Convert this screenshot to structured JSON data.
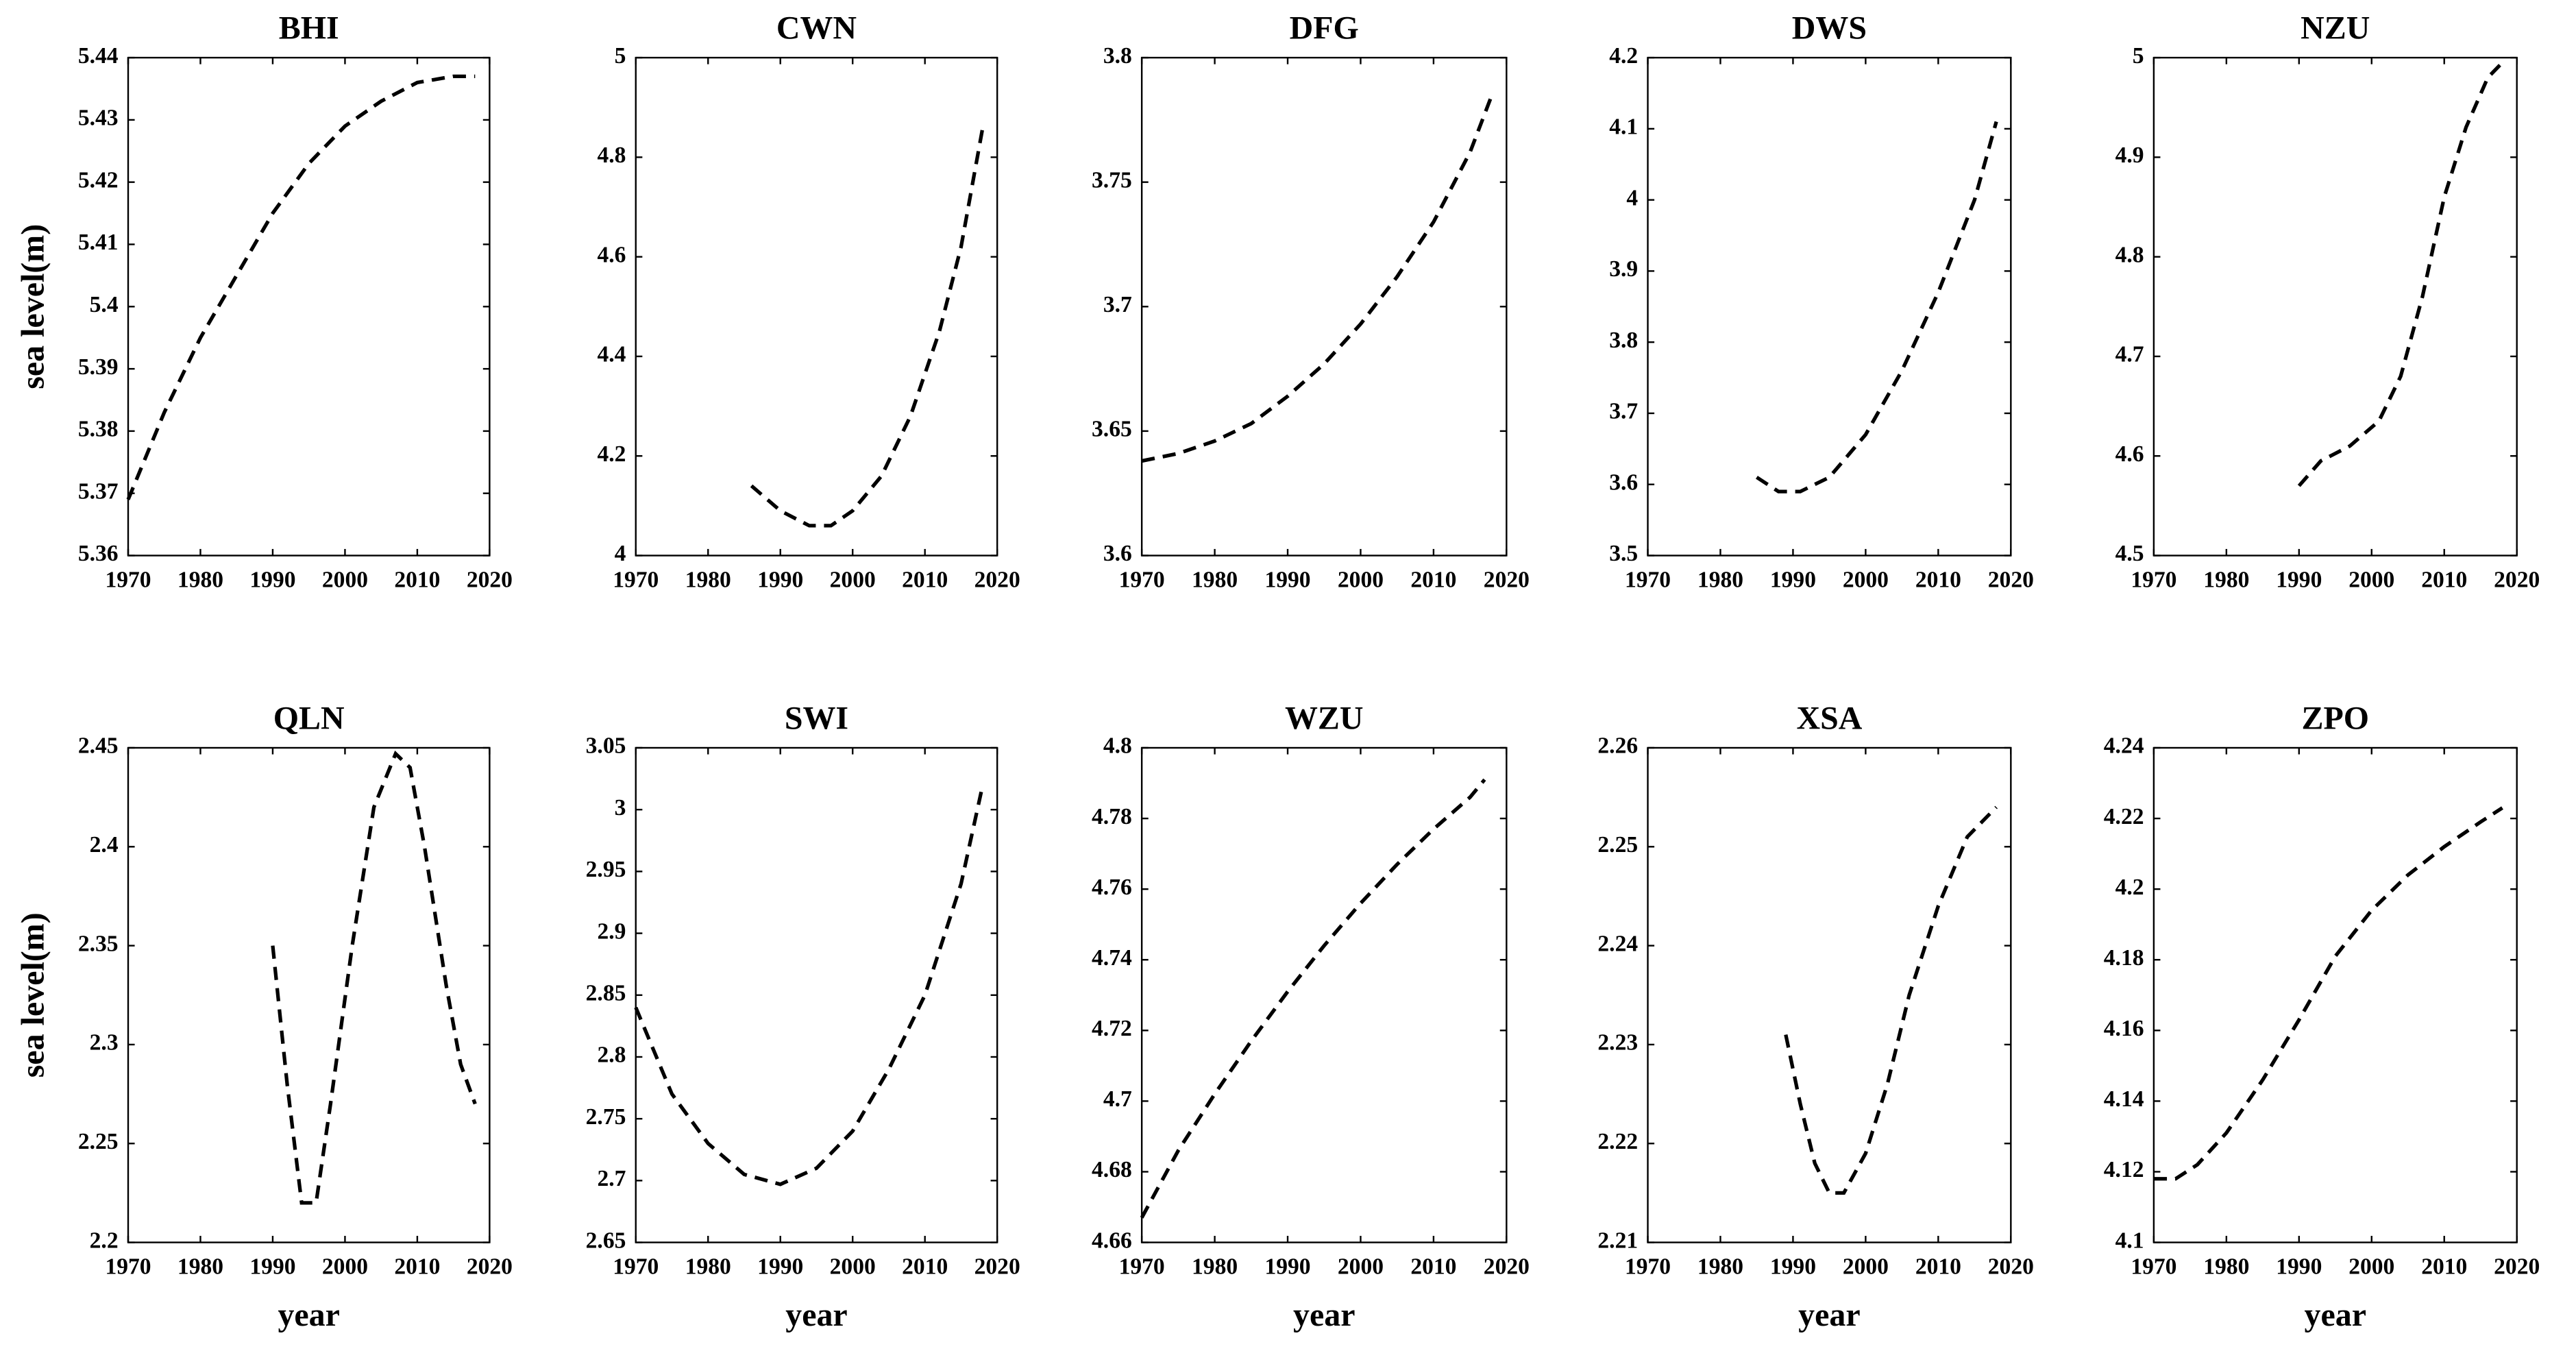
{
  "chart_data": [
    {
      "type": "line",
      "title": "BHI",
      "ylabel": "sea level(m)",
      "x": [
        1970,
        1975,
        1980,
        1985,
        1990,
        1995,
        2000,
        2005,
        2010,
        2015,
        2018
      ],
      "values": [
        5.369,
        5.383,
        5.395,
        5.405,
        5.415,
        5.423,
        5.429,
        5.433,
        5.436,
        5.437,
        5.437
      ],
      "color": "#000000",
      "xlim": [
        1970,
        2020
      ],
      "xticks": [
        1970,
        1980,
        1990,
        2000,
        2010,
        2020
      ],
      "ylim": [
        5.36,
        5.44
      ],
      "yticks": [
        5.36,
        5.37,
        5.38,
        5.39,
        5.4,
        5.41,
        5.42,
        5.43,
        5.44
      ]
    },
    {
      "type": "line",
      "title": "CWN",
      "x": [
        1986,
        1990,
        1994,
        1997,
        2000,
        2004,
        2008,
        2012,
        2015,
        2018
      ],
      "values": [
        4.14,
        4.09,
        4.06,
        4.06,
        4.09,
        4.16,
        4.28,
        4.45,
        4.62,
        4.86
      ],
      "color": "#000000",
      "xlim": [
        1970,
        2020
      ],
      "xticks": [
        1970,
        1980,
        1990,
        2000,
        2010,
        2020
      ],
      "ylim": [
        4,
        5
      ],
      "yticks": [
        4,
        4.2,
        4.4,
        4.6,
        4.8,
        5
      ]
    },
    {
      "type": "line",
      "title": "DFG",
      "x": [
        1970,
        1975,
        1980,
        1985,
        1990,
        1995,
        2000,
        2005,
        2010,
        2015,
        2018
      ],
      "values": [
        3.638,
        3.641,
        3.646,
        3.653,
        3.664,
        3.677,
        3.693,
        3.712,
        3.734,
        3.762,
        3.785
      ],
      "color": "#000000",
      "xlim": [
        1970,
        2020
      ],
      "xticks": [
        1970,
        1980,
        1990,
        2000,
        2010,
        2020
      ],
      "ylim": [
        3.6,
        3.8
      ],
      "yticks": [
        3.6,
        3.65,
        3.7,
        3.75,
        3.8
      ]
    },
    {
      "type": "line",
      "title": "DWS",
      "x": [
        1985,
        1988,
        1991,
        1995,
        2000,
        2005,
        2010,
        2015,
        2018
      ],
      "values": [
        3.61,
        3.59,
        3.59,
        3.61,
        3.67,
        3.76,
        3.87,
        4.0,
        4.11
      ],
      "color": "#000000",
      "xlim": [
        1970,
        2020
      ],
      "xticks": [
        1970,
        1980,
        1990,
        2000,
        2010,
        2020
      ],
      "ylim": [
        3.5,
        4.2
      ],
      "yticks": [
        3.5,
        3.6,
        3.7,
        3.8,
        3.9,
        4,
        4.1,
        4.2
      ]
    },
    {
      "type": "line",
      "title": "NZU",
      "x": [
        1990,
        1993,
        1997,
        2001,
        2004,
        2007,
        2010,
        2013,
        2016,
        2018
      ],
      "values": [
        4.57,
        4.595,
        4.61,
        4.635,
        4.68,
        4.76,
        4.86,
        4.93,
        4.98,
        4.995
      ],
      "color": "#000000",
      "xlim": [
        1970,
        2020
      ],
      "xticks": [
        1970,
        1980,
        1990,
        2000,
        2010,
        2020
      ],
      "ylim": [
        4.5,
        5
      ],
      "yticks": [
        4.5,
        4.6,
        4.7,
        4.8,
        4.9,
        5
      ]
    },
    {
      "type": "line",
      "title": "QLN",
      "ylabel": "sea level(m)",
      "xlabel": "year",
      "x": [
        1990,
        1992,
        1994,
        1996,
        1998,
        2001,
        2004,
        2007,
        2009,
        2011,
        2014,
        2016,
        2018
      ],
      "values": [
        2.35,
        2.28,
        2.22,
        2.22,
        2.27,
        2.35,
        2.42,
        2.447,
        2.44,
        2.4,
        2.33,
        2.29,
        2.27
      ],
      "color": "#000000",
      "xlim": [
        1970,
        2020
      ],
      "xticks": [
        1970,
        1980,
        1990,
        2000,
        2010,
        2020
      ],
      "ylim": [
        2.2,
        2.45
      ],
      "yticks": [
        2.2,
        2.25,
        2.3,
        2.35,
        2.4,
        2.45
      ]
    },
    {
      "type": "line",
      "title": "SWI",
      "xlabel": "year",
      "x": [
        1970,
        1975,
        1980,
        1985,
        1990,
        1995,
        2000,
        2005,
        2010,
        2015,
        2018
      ],
      "values": [
        2.84,
        2.77,
        2.73,
        2.705,
        2.697,
        2.71,
        2.74,
        2.79,
        2.85,
        2.94,
        3.02
      ],
      "color": "#000000",
      "xlim": [
        1970,
        2020
      ],
      "xticks": [
        1970,
        1980,
        1990,
        2000,
        2010,
        2020
      ],
      "ylim": [
        2.65,
        3.05
      ],
      "yticks": [
        2.65,
        2.7,
        2.75,
        2.8,
        2.85,
        2.9,
        2.95,
        3,
        3.05
      ]
    },
    {
      "type": "line",
      "title": "WZU",
      "xlabel": "year",
      "x": [
        1970,
        1975,
        1980,
        1985,
        1990,
        1995,
        2000,
        2005,
        2010,
        2015,
        2017
      ],
      "values": [
        4.667,
        4.686,
        4.702,
        4.717,
        4.731,
        4.744,
        4.756,
        4.767,
        4.777,
        4.786,
        4.791
      ],
      "color": "#000000",
      "xlim": [
        1970,
        2020
      ],
      "xticks": [
        1970,
        1980,
        1990,
        2000,
        2010,
        2020
      ],
      "ylim": [
        4.66,
        4.8
      ],
      "yticks": [
        4.66,
        4.68,
        4.7,
        4.72,
        4.74,
        4.76,
        4.78,
        4.8
      ]
    },
    {
      "type": "line",
      "title": "XSA",
      "xlabel": "year",
      "x": [
        1989,
        1991,
        1993,
        1995,
        1997,
        2000,
        2003,
        2006,
        2010,
        2014,
        2018
      ],
      "values": [
        2.231,
        2.224,
        2.218,
        2.215,
        2.215,
        2.219,
        2.226,
        2.235,
        2.244,
        2.251,
        2.254
      ],
      "color": "#000000",
      "xlim": [
        1970,
        2020
      ],
      "xticks": [
        1970,
        1980,
        1990,
        2000,
        2010,
        2020
      ],
      "ylim": [
        2.21,
        2.26
      ],
      "yticks": [
        2.21,
        2.22,
        2.23,
        2.24,
        2.25,
        2.26
      ]
    },
    {
      "type": "line",
      "title": "ZPO",
      "xlabel": "year",
      "x": [
        1970,
        1973,
        1976,
        1980,
        1985,
        1990,
        1995,
        2000,
        2005,
        2010,
        2015,
        2018
      ],
      "values": [
        4.118,
        4.118,
        4.122,
        4.131,
        4.146,
        4.163,
        4.181,
        4.194,
        4.204,
        4.212,
        4.219,
        4.223
      ],
      "color": "#000000",
      "xlim": [
        1970,
        2020
      ],
      "xticks": [
        1970,
        1980,
        1990,
        2000,
        2010,
        2020
      ],
      "ylim": [
        4.1,
        4.24
      ],
      "yticks": [
        4.1,
        4.12,
        4.14,
        4.16,
        4.18,
        4.2,
        4.22,
        4.24
      ]
    }
  ]
}
